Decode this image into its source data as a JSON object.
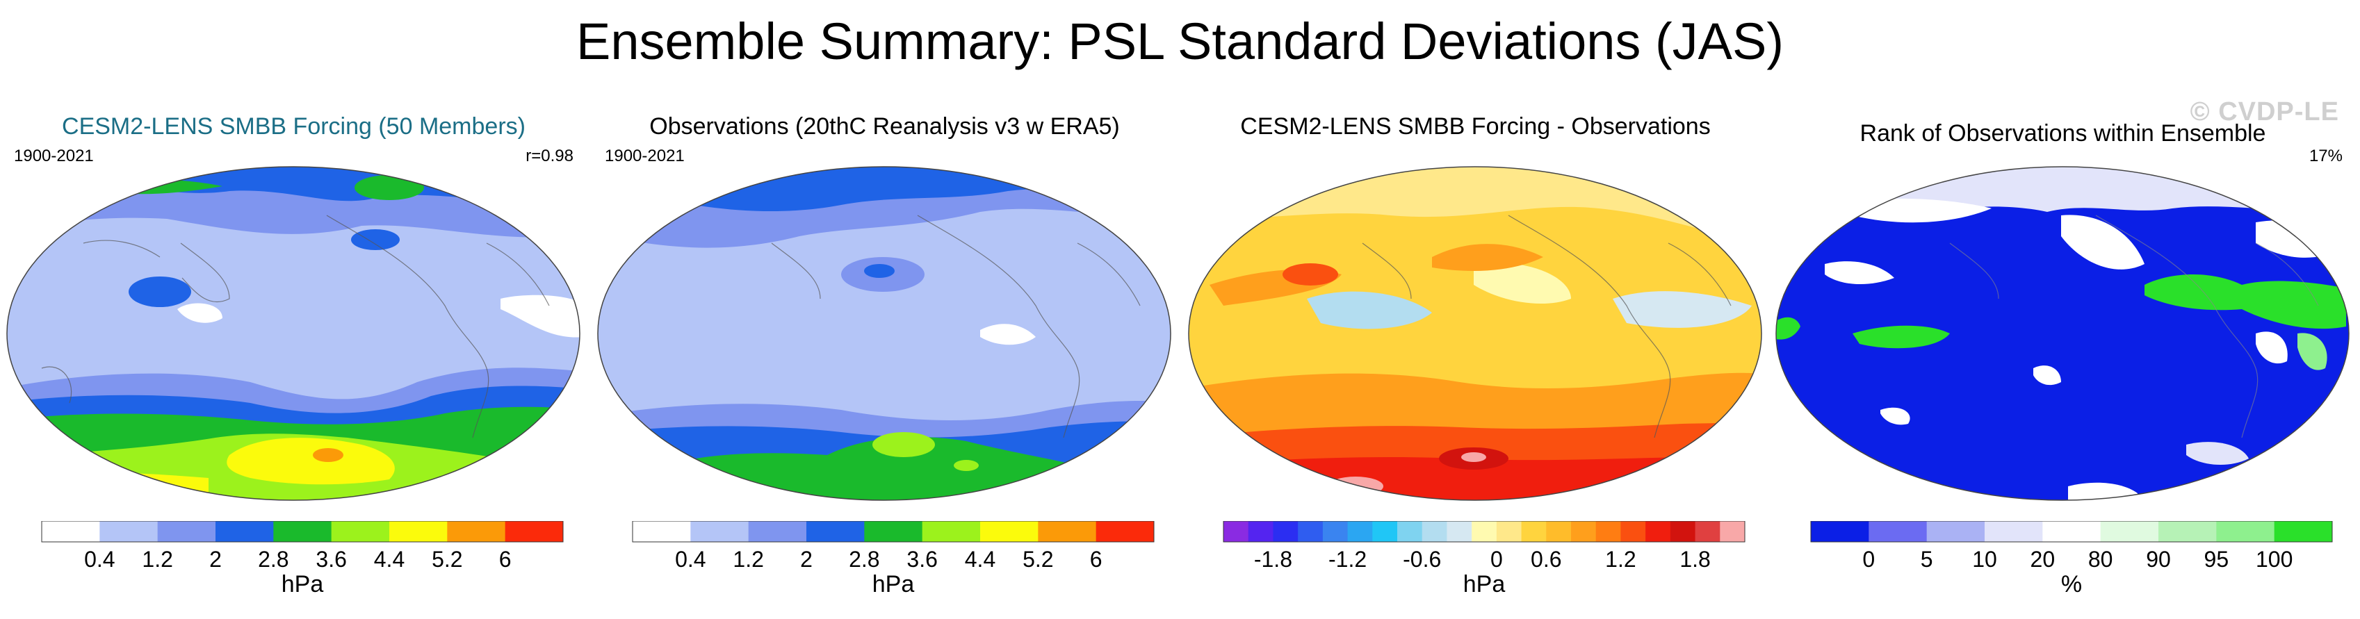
{
  "title": "Ensemble Summary: PSL Standard Deviations (JAS)",
  "watermark": "© CVDP-LE",
  "panels": [
    {
      "title": "CESM2-LENS SMBB Forcing (50 Members)",
      "left_label": "1900-2021",
      "right_label": "r=0.98",
      "unit": "hPa",
      "colorbar": {
        "colors": [
          "#ffffff",
          "#b4c5f7",
          "#7f95ef",
          "#1f63e6",
          "#1aba2c",
          "#9cf21c",
          "#fbfb0c",
          "#fb9a08",
          "#fb2a0a"
        ],
        "labels": [
          "0.4",
          "1.2",
          "2",
          "2.8",
          "3.6",
          "4.4",
          "5.2",
          "6"
        ]
      }
    },
    {
      "title": "Observations (20thC Reanalysis v3 w ERA5)",
      "left_label": "1900-2021",
      "right_label": "",
      "unit": "hPa",
      "colorbar": {
        "colors": [
          "#ffffff",
          "#b4c5f7",
          "#7f95ef",
          "#1f63e6",
          "#1aba2c",
          "#9cf21c",
          "#fbfb0c",
          "#fb9a08",
          "#fb2a0a"
        ],
        "labels": [
          "0.4",
          "1.2",
          "2",
          "2.8",
          "3.6",
          "4.4",
          "5.2",
          "6"
        ]
      }
    },
    {
      "title": "CESM2-LENS SMBB Forcing - Observations",
      "left_label": "",
      "right_label": "",
      "unit": "hPa",
      "colorbar": {
        "colors": [
          "#8a2be2",
          "#5424f0",
          "#2b2ef2",
          "#2f5df0",
          "#3a84f0",
          "#2ba6f2",
          "#20c6f6",
          "#7fd3f0",
          "#b3ddf0",
          "#d6e8f2",
          "#fffab0",
          "#ffe88a",
          "#ffd43e",
          "#ffbc2a",
          "#ff9f1c",
          "#ff7d12",
          "#fa5010",
          "#f01e0e",
          "#d2130e",
          "#e04040",
          "#f8a8a8"
        ],
        "labels": [
          "-1.8",
          "-1.2",
          "-0.6",
          "0",
          "0.6",
          "1.2",
          "1.8"
        ]
      }
    },
    {
      "title": "Rank of Observations within Ensemble",
      "left_label": "",
      "right_label": "17%",
      "unit": "%",
      "colorbar": {
        "colors": [
          "#0b1fe6",
          "#6b6bf2",
          "#aab2f4",
          "#e2e4fa",
          "#ffffff",
          "#e0fae0",
          "#b6f2b6",
          "#8ef08e",
          "#2ae02a"
        ],
        "labels": [
          "0",
          "5",
          "10",
          "20",
          "80",
          "90",
          "95",
          "100"
        ]
      }
    }
  ]
}
